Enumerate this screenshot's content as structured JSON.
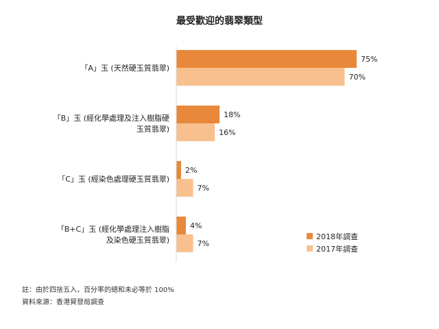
{
  "chart_data": {
    "type": "bar",
    "orientation": "horizontal",
    "title": "最受歡迎的翡翠類型",
    "categories": [
      "「A」玉 (天然硬玉質翡翠)",
      "「B」玉 (經化學處理及注入樹脂硬玉質翡翠)",
      "「C」玉 (經染色處理硬玉質翡翠)",
      "「B+C」玉 (經化學處理注入樹脂及染色硬玉質翡翠)"
    ],
    "category_lines": [
      [
        "「A」玉 (天然硬玉質翡翠)"
      ],
      [
        "「B」玉 (經化學處理及注入樹脂硬",
        "玉質翡翠)"
      ],
      [
        "「C」玉 (經染色處理硬玉質翡翠)"
      ],
      [
        "「B+C」玉 (經化學處理注入樹脂",
        "及染色硬玉質翡翠)"
      ]
    ],
    "series": [
      {
        "name": "2018年調查",
        "values": [
          75,
          18,
          2,
          4
        ],
        "color": "#e8883a"
      },
      {
        "name": "2017年調查",
        "values": [
          70,
          16,
          7,
          7
        ],
        "color": "#f9c08f"
      }
    ],
    "value_suffix": "%",
    "xlim": [
      0,
      80
    ],
    "grid": false,
    "legend_position": "bottom-right"
  },
  "notes": {
    "footnote": "註：由於四捨五入，百分率的總和未必等於 100%",
    "source": "資料來源：香港貿發局調查"
  }
}
